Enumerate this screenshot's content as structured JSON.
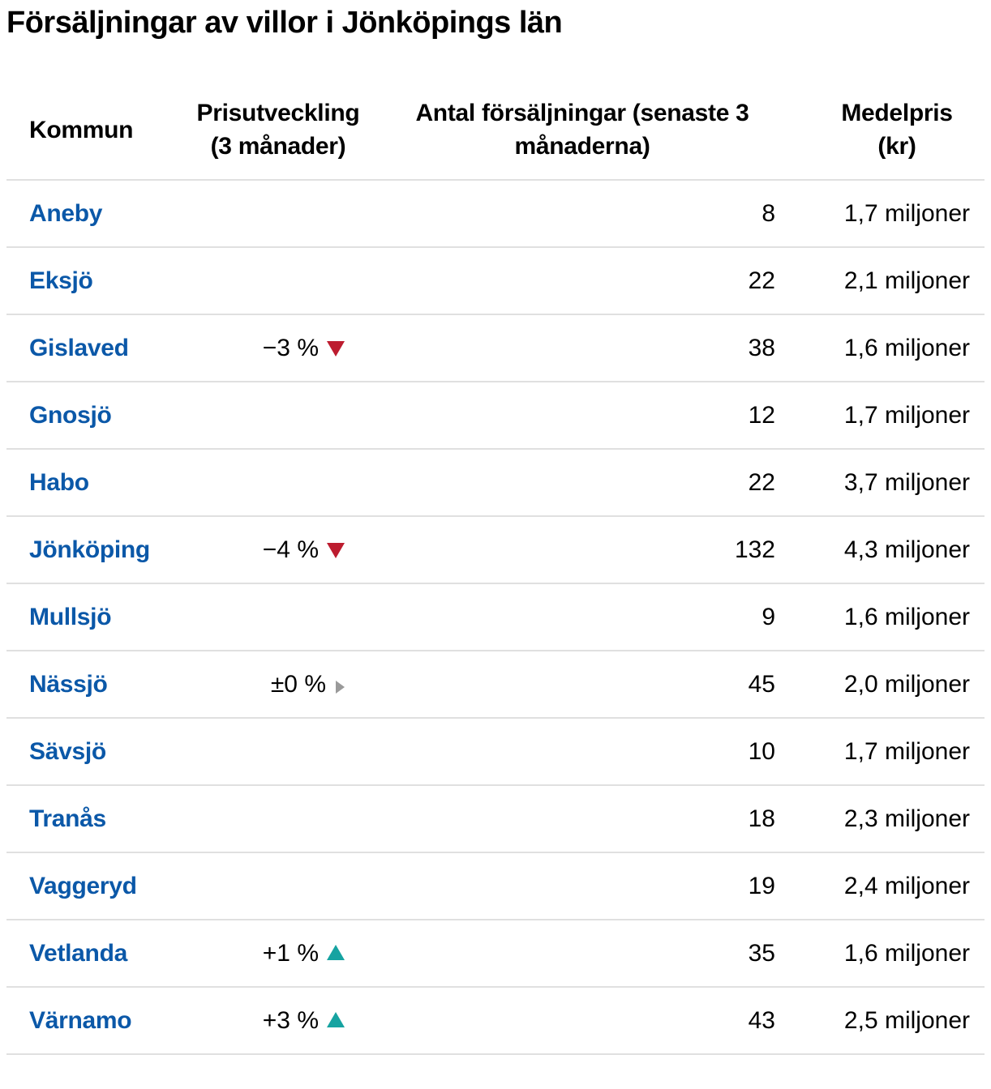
{
  "title": "Försäljningar av villor i Jönköpings län",
  "table": {
    "headers": {
      "kommun": "Kommun",
      "prisutveckling": "Prisutveckling (3 månader)",
      "antal": "Antal försäljningar (senaste 3 månaderna)",
      "medelpris": "Medelpris (kr)"
    },
    "rows": [
      {
        "kommun": "Aneby",
        "prisutveckling": "",
        "trend": "",
        "antal": "8",
        "medelpris": "1,7 miljoner"
      },
      {
        "kommun": "Eksjö",
        "prisutveckling": "",
        "trend": "",
        "antal": "22",
        "medelpris": "2,1 miljoner"
      },
      {
        "kommun": "Gislaved",
        "prisutveckling": "−3 %",
        "trend": "down",
        "antal": "38",
        "medelpris": "1,6 miljoner"
      },
      {
        "kommun": "Gnosjö",
        "prisutveckling": "",
        "trend": "",
        "antal": "12",
        "medelpris": "1,7 miljoner"
      },
      {
        "kommun": "Habo",
        "prisutveckling": "",
        "trend": "",
        "antal": "22",
        "medelpris": "3,7 miljoner"
      },
      {
        "kommun": "Jönköping",
        "prisutveckling": "−4 %",
        "trend": "down",
        "antal": "132",
        "medelpris": "4,3 miljoner"
      },
      {
        "kommun": "Mullsjö",
        "prisutveckling": "",
        "trend": "",
        "antal": "9",
        "medelpris": "1,6 miljoner"
      },
      {
        "kommun": "Nässjö",
        "prisutveckling": "±0 %",
        "trend": "flat",
        "antal": "45",
        "medelpris": "2,0 miljoner"
      },
      {
        "kommun": "Sävsjö",
        "prisutveckling": "",
        "trend": "",
        "antal": "10",
        "medelpris": "1,7 miljoner"
      },
      {
        "kommun": "Tranås",
        "prisutveckling": "",
        "trend": "",
        "antal": "18",
        "medelpris": "2,3 miljoner"
      },
      {
        "kommun": "Vaggeryd",
        "prisutveckling": "",
        "trend": "",
        "antal": "19",
        "medelpris": "2,4 miljoner"
      },
      {
        "kommun": "Vetlanda",
        "prisutveckling": "+1 %",
        "trend": "up",
        "antal": "35",
        "medelpris": "1,6 miljoner"
      },
      {
        "kommun": "Värnamo",
        "prisutveckling": "+3 %",
        "trend": "up",
        "antal": "43",
        "medelpris": "2,5 miljoner"
      }
    ]
  },
  "chart_data": {
    "type": "table",
    "title": "Försäljningar av villor i Jönköpings län",
    "columns": [
      "Kommun",
      "Prisutveckling (3 månader)",
      "Antal försäljningar (senaste 3 månaderna)",
      "Medelpris (kr)"
    ],
    "rows": [
      [
        "Aneby",
        null,
        8,
        "1,7 miljoner"
      ],
      [
        "Eksjö",
        null,
        22,
        "2,1 miljoner"
      ],
      [
        "Gislaved",
        "−3 %",
        38,
        "1,6 miljoner"
      ],
      [
        "Gnosjö",
        null,
        12,
        "1,7 miljoner"
      ],
      [
        "Habo",
        null,
        22,
        "3,7 miljoner"
      ],
      [
        "Jönköping",
        "−4 %",
        132,
        "4,3 miljoner"
      ],
      [
        "Mullsjö",
        null,
        9,
        "1,6 miljoner"
      ],
      [
        "Nässjö",
        "±0 %",
        45,
        "2,0 miljoner"
      ],
      [
        "Sävsjö",
        null,
        10,
        "1,7 miljoner"
      ],
      [
        "Tranås",
        null,
        18,
        "2,3 miljoner"
      ],
      [
        "Vaggeryd",
        null,
        19,
        "2,4 miljoner"
      ],
      [
        "Vetlanda",
        "+1 %",
        35,
        "1,6 miljoner"
      ],
      [
        "Värnamo",
        "+3 %",
        43,
        "2,5 miljoner"
      ]
    ]
  },
  "icons": {
    "down": "trend-down-icon",
    "up": "trend-up-icon",
    "flat": "trend-flat-icon"
  },
  "colors": {
    "link_blue": "#0b58a8",
    "negative_red": "#bd1c2f",
    "positive_teal": "#16a3a1",
    "neutral_gray": "#9a9a9a",
    "divider": "#e0e0e0",
    "text": "#000000"
  }
}
